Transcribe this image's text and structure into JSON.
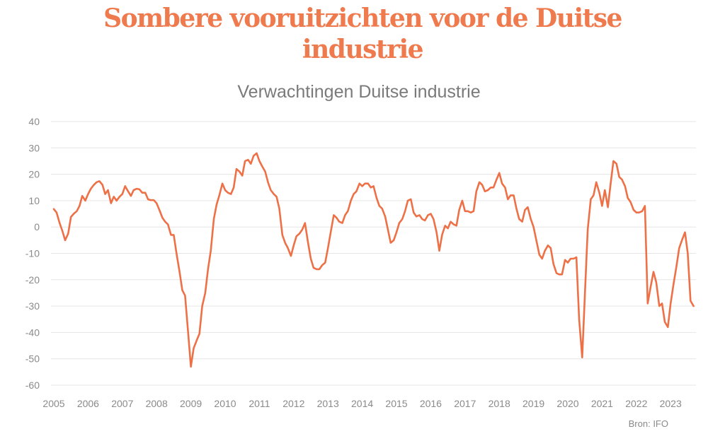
{
  "title": {
    "line1": "Sombere vooruitzichten voor de Duitse",
    "line2": "industrie"
  },
  "source": "Bron: IFO",
  "colors": {
    "line": "#ee7046",
    "title": "#ee7a4e",
    "grid": "#e6e6e6",
    "text": "#8a8a8a"
  },
  "chart_data": {
    "type": "line",
    "title": "Verwachtingen Duitse industrie",
    "xlabel": "",
    "ylabel": "",
    "ylim": [
      -60,
      40
    ],
    "xlim": [
      2005,
      2023.75
    ],
    "yticks": [
      40,
      30,
      20,
      10,
      0,
      -10,
      -20,
      -30,
      -40,
      -50,
      -60
    ],
    "xticks": [
      "2005",
      "2006",
      "2007",
      "2008",
      "2009",
      "2010",
      "2011",
      "2012",
      "2013",
      "2014",
      "2015",
      "2016",
      "2017",
      "2018",
      "2019",
      "2020",
      "2021",
      "2022",
      "2023"
    ],
    "grid": true,
    "legend": "none",
    "series": [
      {
        "name": "Verwachtingen Duitse industrie",
        "x": [
          2005.0,
          2005.08,
          2005.17,
          2005.25,
          2005.33,
          2005.42,
          2005.5,
          2005.58,
          2005.67,
          2005.75,
          2005.83,
          2005.92,
          2006.0,
          2006.08,
          2006.17,
          2006.25,
          2006.33,
          2006.42,
          2006.5,
          2006.58,
          2006.67,
          2006.75,
          2006.83,
          2006.92,
          2007.0,
          2007.08,
          2007.17,
          2007.25,
          2007.33,
          2007.42,
          2007.5,
          2007.58,
          2007.67,
          2007.75,
          2007.83,
          2007.92,
          2008.0,
          2008.08,
          2008.17,
          2008.25,
          2008.33,
          2008.42,
          2008.5,
          2008.58,
          2008.67,
          2008.75,
          2008.83,
          2008.92,
          2009.0,
          2009.08,
          2009.17,
          2009.25,
          2009.33,
          2009.42,
          2009.5,
          2009.58,
          2009.67,
          2009.75,
          2009.83,
          2009.92,
          2010.0,
          2010.08,
          2010.17,
          2010.25,
          2010.33,
          2010.42,
          2010.5,
          2010.58,
          2010.67,
          2010.75,
          2010.83,
          2010.92,
          2011.0,
          2011.08,
          2011.17,
          2011.25,
          2011.33,
          2011.42,
          2011.5,
          2011.58,
          2011.67,
          2011.75,
          2011.83,
          2011.92,
          2012.0,
          2012.08,
          2012.17,
          2012.25,
          2012.33,
          2012.42,
          2012.5,
          2012.58,
          2012.67,
          2012.75,
          2012.83,
          2012.92,
          2013.0,
          2013.08,
          2013.17,
          2013.25,
          2013.33,
          2013.42,
          2013.5,
          2013.58,
          2013.67,
          2013.75,
          2013.83,
          2013.92,
          2014.0,
          2014.08,
          2014.17,
          2014.25,
          2014.33,
          2014.42,
          2014.5,
          2014.58,
          2014.67,
          2014.75,
          2014.83,
          2014.92,
          2015.0,
          2015.08,
          2015.17,
          2015.25,
          2015.33,
          2015.42,
          2015.5,
          2015.58,
          2015.67,
          2015.75,
          2015.83,
          2015.92,
          2016.0,
          2016.08,
          2016.17,
          2016.25,
          2016.33,
          2016.42,
          2016.5,
          2016.58,
          2016.67,
          2016.75,
          2016.83,
          2016.92,
          2017.0,
          2017.08,
          2017.17,
          2017.25,
          2017.33,
          2017.42,
          2017.5,
          2017.58,
          2017.67,
          2017.75,
          2017.83,
          2017.92,
          2018.0,
          2018.08,
          2018.17,
          2018.25,
          2018.33,
          2018.42,
          2018.5,
          2018.58,
          2018.67,
          2018.75,
          2018.83,
          2018.92,
          2019.0,
          2019.08,
          2019.17,
          2019.25,
          2019.33,
          2019.42,
          2019.5,
          2019.58,
          2019.67,
          2019.75,
          2019.83,
          2019.92,
          2020.0,
          2020.08,
          2020.17,
          2020.25,
          2020.33,
          2020.42,
          2020.5,
          2020.58,
          2020.67,
          2020.75,
          2020.83,
          2020.92,
          2021.0,
          2021.08,
          2021.17,
          2021.25,
          2021.33,
          2021.42,
          2021.5,
          2021.58,
          2021.67,
          2021.75,
          2021.83,
          2021.92,
          2022.0,
          2022.08,
          2022.17,
          2022.25,
          2022.33,
          2022.42,
          2022.5,
          2022.58,
          2022.67,
          2022.75,
          2022.83,
          2022.92,
          2023.0,
          2023.08,
          2023.17,
          2023.25,
          2023.33,
          2023.42,
          2023.5,
          2023.58,
          2023.67
        ],
        "values": [
          6.8,
          5.5,
          1.5,
          -1.5,
          -5.0,
          -2.5,
          3.8,
          5.0,
          6.0,
          8.0,
          11.8,
          10.0,
          12.5,
          14.5,
          16.0,
          17.0,
          17.4,
          16.0,
          12.5,
          14.0,
          9.0,
          11.5,
          10.0,
          11.5,
          12.5,
          15.5,
          13.5,
          11.8,
          14.0,
          14.5,
          14.3,
          13.0,
          13.0,
          10.5,
          10.2,
          10.2,
          9.0,
          6.5,
          3.5,
          2.0,
          1.0,
          -3.0,
          -3.0,
          -10.0,
          -17.0,
          -24.0,
          -26.0,
          -40.0,
          -53.0,
          -46.0,
          -43.0,
          -40.5,
          -30.0,
          -25.0,
          -16.0,
          -9.0,
          3.0,
          8.5,
          12.0,
          16.5,
          14.0,
          13.0,
          12.5,
          15.0,
          22.0,
          21.0,
          19.5,
          25.0,
          25.5,
          24.0,
          27.0,
          28.0,
          25.0,
          23.0,
          21.0,
          17.0,
          14.0,
          12.5,
          11.5,
          7.0,
          -3.0,
          -6.0,
          -8.0,
          -11.0,
          -7.0,
          -3.5,
          -2.5,
          -1.0,
          1.5,
          -6.0,
          -12.0,
          -15.5,
          -16.0,
          -16.0,
          -14.5,
          -13.5,
          -8.0,
          -2.0,
          4.5,
          3.5,
          2.0,
          1.5,
          4.5,
          6.0,
          10.0,
          12.5,
          13.5,
          16.5,
          15.5,
          16.5,
          16.5,
          15.0,
          15.5,
          11.0,
          8.0,
          7.0,
          4.0,
          -1.0,
          -6.0,
          -5.0,
          -2.0,
          1.5,
          3.0,
          6.0,
          10.0,
          10.5,
          5.5,
          4.0,
          4.5,
          3.0,
          2.5,
          4.5,
          5.0,
          3.0,
          -2.0,
          -9.0,
          -3.0,
          0.5,
          -0.5,
          2.0,
          1.0,
          0.5,
          6.5,
          10.0,
          6.0,
          6.0,
          5.5,
          6.0,
          13.5,
          17.0,
          16.0,
          13.5,
          14.0,
          15.0,
          15.0,
          18.0,
          20.5,
          16.5,
          15.0,
          10.5,
          12.0,
          12.0,
          7.0,
          3.0,
          2.0,
          6.5,
          7.5,
          3.0,
          0.0,
          -5.0,
          -10.5,
          -12.0,
          -9.0,
          -7.0,
          -8.0,
          -14.0,
          -17.5,
          -18.0,
          -18.0,
          -12.5,
          -13.5,
          -12.0,
          -12.0,
          -11.5,
          -35.0,
          -49.5,
          -25.0,
          -1.0,
          10.5,
          12.0,
          17.0,
          13.0,
          8.0,
          14.0,
          7.5,
          16.5,
          25.0,
          24.0,
          19.0,
          18.0,
          15.5,
          11.0,
          9.5,
          6.5,
          5.5,
          5.5,
          6.0,
          8.0,
          -29.0,
          -22.5,
          -17.0,
          -21.0,
          -30.0,
          -29.0,
          -36.0,
          -38.0,
          -29.0,
          -22.0,
          -15.0,
          -8.0,
          -5.0,
          -2.0,
          -10.0,
          -28.0,
          -30.0
        ]
      }
    ]
  }
}
